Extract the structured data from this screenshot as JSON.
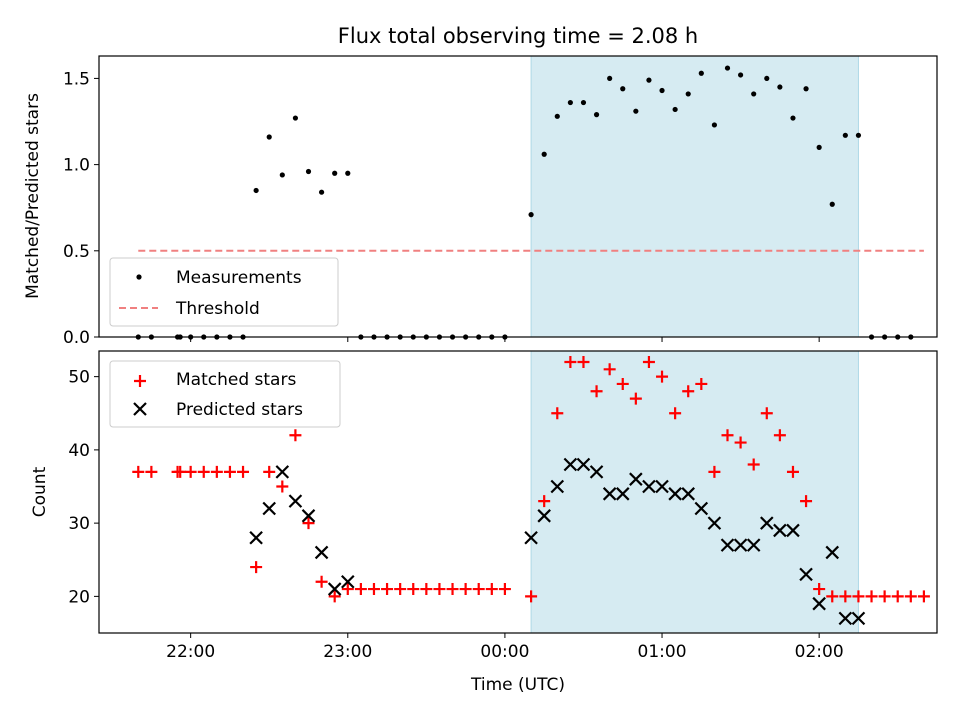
{
  "chart_data": [
    {
      "type": "scatter",
      "title": "Flux total observing time = 2.08 h",
      "ylabel": "Matched/Predicted stars",
      "xlabel": "",
      "xlim": [
        "21:25",
        "02:45"
      ],
      "ylim": [
        0,
        1.63
      ],
      "yticks": [
        0.0,
        0.5,
        1.0,
        1.5
      ],
      "ytick_labels": [
        "0.0",
        "0.5",
        "1.0",
        "1.5"
      ],
      "xticks": [
        "22:00",
        "23:00",
        "00:00",
        "01:00",
        "02:00"
      ],
      "shaded_span": [
        "00:10",
        "02:15"
      ],
      "legend_position": "lower-left",
      "legend": {
        "measurements": "Measurements",
        "threshold": "Threshold"
      },
      "threshold": {
        "value": 0.5,
        "x_start": "21:40",
        "x_end": "02:40",
        "color": "#f08080"
      },
      "series": [
        {
          "name": "Measurements",
          "marker": "dot",
          "color": "#000000",
          "points": [
            [
              "21:40",
              0
            ],
            [
              "21:45",
              0
            ],
            [
              "21:55",
              0
            ],
            [
              "21:56",
              0
            ],
            [
              "22:00",
              0
            ],
            [
              "22:05",
              0
            ],
            [
              "22:10",
              0
            ],
            [
              "22:15",
              0
            ],
            [
              "22:20",
              0
            ],
            [
              "22:25",
              0.85
            ],
            [
              "22:30",
              1.16
            ],
            [
              "22:35",
              0.94
            ],
            [
              "22:40",
              1.27
            ],
            [
              "22:45",
              0.96
            ],
            [
              "22:50",
              0.84
            ],
            [
              "22:55",
              0.95
            ],
            [
              "23:00",
              0.95
            ],
            [
              "23:05",
              0
            ],
            [
              "23:10",
              0
            ],
            [
              "23:15",
              0
            ],
            [
              "23:20",
              0
            ],
            [
              "23:25",
              0
            ],
            [
              "23:30",
              0
            ],
            [
              "23:35",
              0
            ],
            [
              "23:40",
              0
            ],
            [
              "23:45",
              0
            ],
            [
              "23:50",
              0
            ],
            [
              "23:55",
              0
            ],
            [
              "00:00",
              0
            ],
            [
              "00:10",
              0.71
            ],
            [
              "00:15",
              1.06
            ],
            [
              "00:20",
              1.28
            ],
            [
              "00:25",
              1.36
            ],
            [
              "00:30",
              1.36
            ],
            [
              "00:35",
              1.29
            ],
            [
              "00:40",
              1.5
            ],
            [
              "00:45",
              1.44
            ],
            [
              "00:50",
              1.31
            ],
            [
              "00:55",
              1.49
            ],
            [
              "01:00",
              1.43
            ],
            [
              "01:05",
              1.32
            ],
            [
              "01:10",
              1.41
            ],
            [
              "01:15",
              1.53
            ],
            [
              "01:20",
              1.23
            ],
            [
              "01:25",
              1.56
            ],
            [
              "01:30",
              1.52
            ],
            [
              "01:35",
              1.41
            ],
            [
              "01:40",
              1.5
            ],
            [
              "01:45",
              1.45
            ],
            [
              "01:50",
              1.27
            ],
            [
              "01:55",
              1.44
            ],
            [
              "02:00",
              1.1
            ],
            [
              "02:05",
              0.77
            ],
            [
              "02:10",
              1.17
            ],
            [
              "02:15",
              1.17
            ],
            [
              "02:20",
              0
            ],
            [
              "02:25",
              0
            ],
            [
              "02:30",
              0
            ],
            [
              "02:35",
              0
            ]
          ]
        }
      ]
    },
    {
      "type": "scatter",
      "title": "",
      "ylabel": "Count",
      "xlabel": "Time (UTC)",
      "xlim": [
        "21:25",
        "02:45"
      ],
      "ylim": [
        15,
        53.5
      ],
      "yticks": [
        20,
        30,
        40,
        50
      ],
      "ytick_labels": [
        "20",
        "30",
        "40",
        "50"
      ],
      "xticks": [
        "22:00",
        "23:00",
        "00:00",
        "01:00",
        "02:00"
      ],
      "xtick_labels": [
        "22:00",
        "23:00",
        "00:00",
        "01:00",
        "02:00"
      ],
      "shaded_span": [
        "00:10",
        "02:15"
      ],
      "legend_position": "upper-left",
      "legend": {
        "matched": "Matched stars",
        "predicted": "Predicted stars"
      },
      "series": [
        {
          "name": "Matched stars",
          "marker": "plus",
          "color": "#ff0000",
          "points": [
            [
              "21:40",
              37
            ],
            [
              "21:45",
              37
            ],
            [
              "21:55",
              37
            ],
            [
              "21:56",
              37
            ],
            [
              "22:00",
              37
            ],
            [
              "22:05",
              37
            ],
            [
              "22:10",
              37
            ],
            [
              "22:15",
              37
            ],
            [
              "22:20",
              37
            ],
            [
              "22:25",
              24
            ],
            [
              "22:30",
              37
            ],
            [
              "22:35",
              35
            ],
            [
              "22:40",
              42
            ],
            [
              "22:45",
              30
            ],
            [
              "22:50",
              22
            ],
            [
              "22:55",
              20
            ],
            [
              "23:00",
              21
            ],
            [
              "23:05",
              21
            ],
            [
              "23:10",
              21
            ],
            [
              "23:15",
              21
            ],
            [
              "23:20",
              21
            ],
            [
              "23:25",
              21
            ],
            [
              "23:30",
              21
            ],
            [
              "23:35",
              21
            ],
            [
              "23:40",
              21
            ],
            [
              "23:45",
              21
            ],
            [
              "23:50",
              21
            ],
            [
              "23:55",
              21
            ],
            [
              "00:00",
              21
            ],
            [
              "00:10",
              20
            ],
            [
              "00:15",
              33
            ],
            [
              "00:20",
              45
            ],
            [
              "00:25",
              52
            ],
            [
              "00:30",
              52
            ],
            [
              "00:35",
              48
            ],
            [
              "00:40",
              51
            ],
            [
              "00:45",
              49
            ],
            [
              "00:50",
              47
            ],
            [
              "00:55",
              52
            ],
            [
              "01:00",
              50
            ],
            [
              "01:05",
              45
            ],
            [
              "01:10",
              48
            ],
            [
              "01:15",
              49
            ],
            [
              "01:20",
              37
            ],
            [
              "01:25",
              42
            ],
            [
              "01:30",
              41
            ],
            [
              "01:35",
              38
            ],
            [
              "01:40",
              45
            ],
            [
              "01:45",
              42
            ],
            [
              "01:50",
              37
            ],
            [
              "01:55",
              33
            ],
            [
              "02:00",
              21
            ],
            [
              "02:05",
              20
            ],
            [
              "02:10",
              20
            ],
            [
              "02:15",
              20
            ],
            [
              "02:20",
              20
            ],
            [
              "02:25",
              20
            ],
            [
              "02:30",
              20
            ],
            [
              "02:35",
              20
            ],
            [
              "02:40",
              20
            ]
          ]
        },
        {
          "name": "Predicted stars",
          "marker": "x",
          "color": "#000000",
          "points": [
            [
              "22:25",
              28
            ],
            [
              "22:30",
              32
            ],
            [
              "22:35",
              37
            ],
            [
              "22:40",
              33
            ],
            [
              "22:45",
              31
            ],
            [
              "22:50",
              26
            ],
            [
              "22:55",
              21
            ],
            [
              "23:00",
              22
            ],
            [
              "00:10",
              28
            ],
            [
              "00:15",
              31
            ],
            [
              "00:20",
              35
            ],
            [
              "00:25",
              38
            ],
            [
              "00:30",
              38
            ],
            [
              "00:35",
              37
            ],
            [
              "00:40",
              34
            ],
            [
              "00:45",
              34
            ],
            [
              "00:50",
              36
            ],
            [
              "00:55",
              35
            ],
            [
              "01:00",
              35
            ],
            [
              "01:05",
              34
            ],
            [
              "01:10",
              34
            ],
            [
              "01:15",
              32
            ],
            [
              "01:20",
              30
            ],
            [
              "01:25",
              27
            ],
            [
              "01:30",
              27
            ],
            [
              "01:35",
              27
            ],
            [
              "01:40",
              30
            ],
            [
              "01:45",
              29
            ],
            [
              "01:50",
              29
            ],
            [
              "01:55",
              23
            ],
            [
              "02:00",
              19
            ],
            [
              "02:05",
              26
            ],
            [
              "02:10",
              17
            ],
            [
              "02:15",
              17
            ]
          ]
        }
      ]
    }
  ]
}
